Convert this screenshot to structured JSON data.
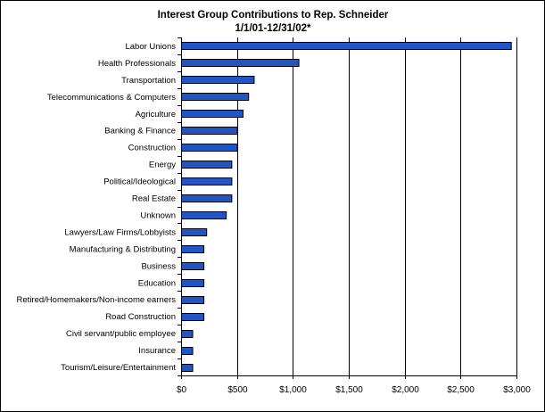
{
  "chart_data": {
    "type": "bar",
    "orientation": "horizontal",
    "title": "Interest Group Contributions to Rep. Schneider",
    "subtitle": "1/1/01-12/31/02*",
    "categories": [
      "Labor Unions",
      "Health Professionals",
      "Transportation",
      "Telecommunications & Computers",
      "Agriculture",
      "Banking & Finance",
      "Construction",
      "Energy",
      "Political/Ideological",
      "Real Estate",
      "Unknown",
      "Lawyers/Law Firms/Lobbyists",
      "Manufacturing & Distributing",
      "Business",
      "Education",
      "Retired/Homemakers/Non-income earners",
      "Road Construction",
      "Civil servant/public employee",
      "Insurance",
      "Tourism/Leisure/Entertainment"
    ],
    "values": [
      2950,
      1050,
      650,
      600,
      550,
      500,
      500,
      450,
      450,
      450,
      400,
      225,
      200,
      200,
      200,
      200,
      200,
      100,
      100,
      100
    ],
    "xlim": [
      0,
      3000
    ],
    "xticks": [
      0,
      500,
      1000,
      1500,
      2000,
      2500,
      3000
    ],
    "xtick_labels": [
      "$0",
      "$500",
      "$1,000",
      "$1,500",
      "$2,000",
      "$2,500",
      "$3,000"
    ],
    "xlabel": "",
    "ylabel": "",
    "grid": "vertical gridlines",
    "legend": "none",
    "bar_color": "#2255c4",
    "bar_edge_color": "#000000"
  }
}
